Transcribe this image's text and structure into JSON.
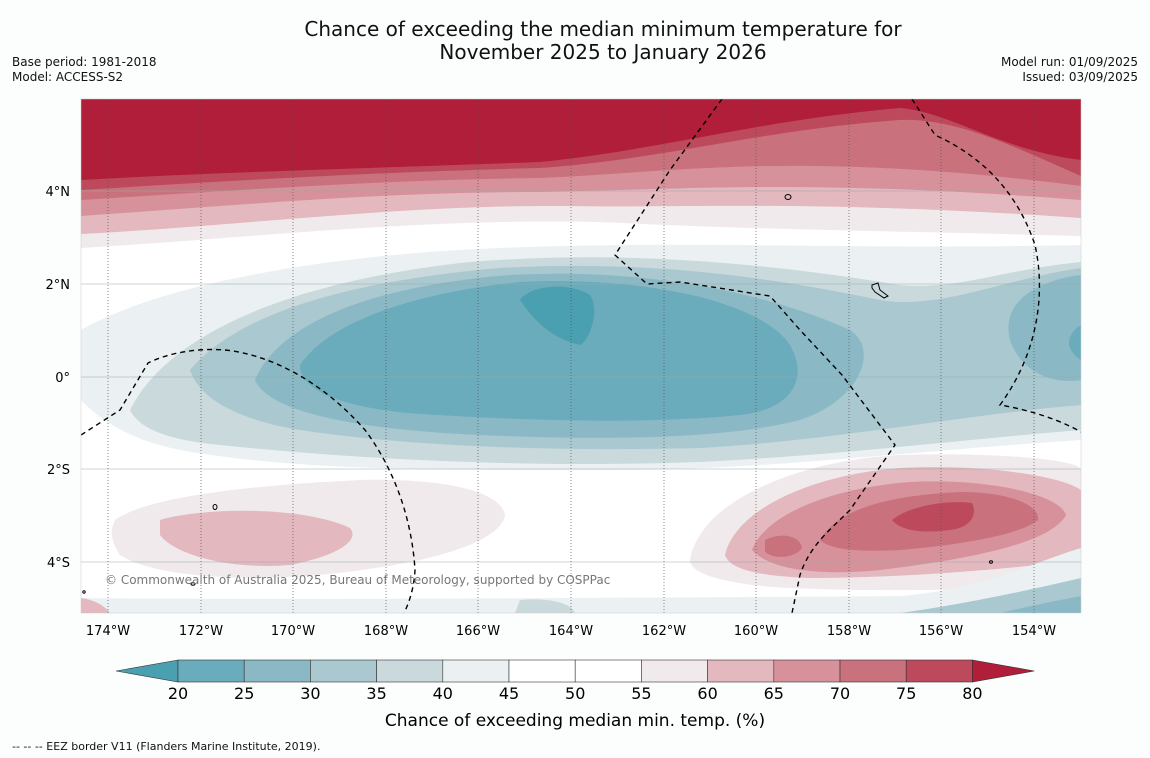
{
  "header": {
    "title_line1": "Chance of exceeding the median minimum temperature for",
    "title_line2": "November 2025 to January 2026",
    "base_period": "Base period: 1981-2018",
    "model": "Model: ACCESS-S2",
    "model_run": "Model run: 01/09/2025",
    "issued": "Issued: 03/09/2025"
  },
  "map": {
    "lat_labels": [
      "4°N",
      "2°N",
      "0°",
      "2°S",
      "4°S"
    ],
    "lon_labels": [
      "174°W",
      "172°W",
      "170°W",
      "168°W",
      "166°W",
      "164°W",
      "162°W",
      "160°W",
      "158°W",
      "156°W",
      "154°W"
    ],
    "copyright": "© Commonwealth of Australia 2025, Bureau of Meteorology, supported by COSPPac"
  },
  "colorbar": {
    "ticks": [
      "20",
      "25",
      "30",
      "35",
      "40",
      "45",
      "50",
      "55",
      "60",
      "65",
      "70",
      "75",
      "80"
    ],
    "colors": [
      "#4a9fb0",
      "#6aacbb",
      "#8ab9c5",
      "#a9c8cf",
      "#c9d9dc",
      "#ebf1f3",
      "#ffffff",
      "#ffffff",
      "#f0eaec",
      "#e3b8be",
      "#d6919b",
      "#c9727d",
      "#bd4a5c",
      "#b01e39"
    ],
    "title": "Chance of exceeding median min. temp. (%)"
  },
  "footer": {
    "eez_note": "--  --  -- EEZ border V11 (Flanders Marine Institute, 2019)."
  }
}
